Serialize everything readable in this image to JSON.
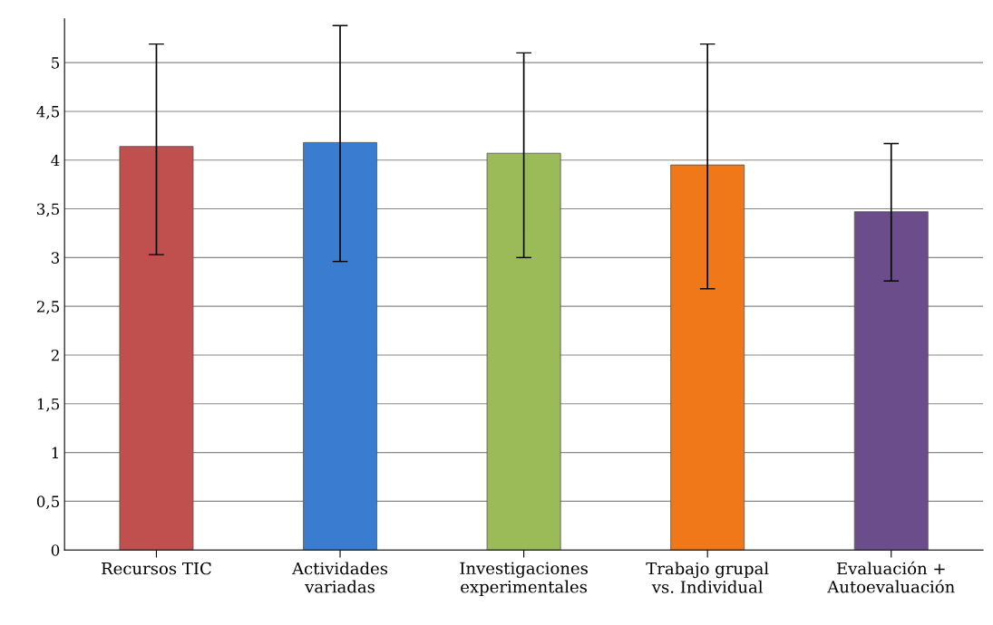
{
  "chart_data": {
    "type": "bar",
    "categories": [
      "Recursos TIC",
      "Actividades\nvariadas",
      "Investigaciones\nexperimentales",
      "Trabajo grupal\nvs. Individual",
      "Evaluación +\nAutoevaluación"
    ],
    "values": [
      4.14,
      4.18,
      4.07,
      3.95,
      3.47
    ],
    "colors": [
      "#c0504d",
      "#3a7dd0",
      "#9bbb59",
      "#f07818",
      "#6a4d8a"
    ],
    "errors": [
      [
        3.03,
        5.19
      ],
      [
        2.96,
        5.38
      ],
      [
        3.0,
        5.1
      ],
      [
        2.68,
        5.19
      ],
      [
        2.76,
        4.17
      ]
    ],
    "ylim": [
      0,
      5.45
    ],
    "yticks": [
      0,
      {
        "value": 0.5,
        "label": "0,5"
      },
      1,
      {
        "value": 1.5,
        "label": "1,5"
      },
      2,
      {
        "value": 2.5,
        "label": "2,5"
      },
      3,
      {
        "value": 3.5,
        "label": "3,5"
      },
      4,
      {
        "value": 4.5,
        "label": "4,5"
      },
      5
    ],
    "grid": "y"
  }
}
